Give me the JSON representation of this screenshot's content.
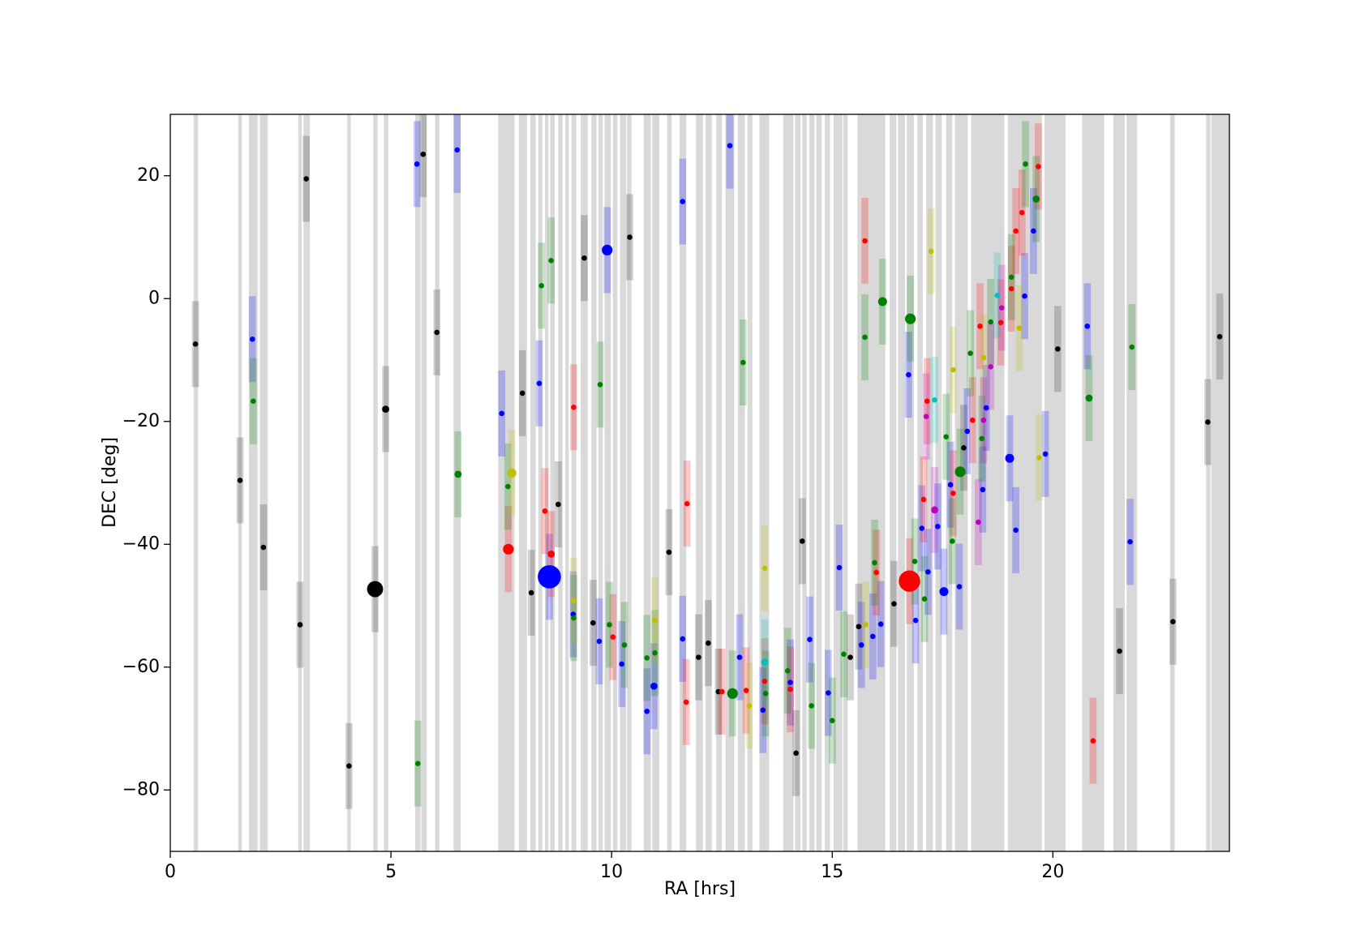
{
  "chart_data": {
    "type": "scatter",
    "x_label": "RA [hrs]",
    "y_label": "DEC [deg]",
    "xlim": [
      0,
      24
    ],
    "ylim": [
      -90,
      30
    ],
    "xticks": [
      0,
      5,
      10,
      15,
      20
    ],
    "yticks": [
      {
        "value": -80,
        "label": "−80"
      },
      {
        "value": -60,
        "label": "−60"
      },
      {
        "value": -40,
        "label": "−40"
      },
      {
        "value": -20,
        "label": "−20"
      },
      0,
      20
    ],
    "band_color": "#d9d9d9",
    "bands": [
      [
        0.53,
        0.63
      ],
      [
        1.54,
        1.62
      ],
      [
        1.78,
        1.98
      ],
      [
        2.03,
        2.21
      ],
      [
        2.9,
        2.98
      ],
      [
        3.02,
        3.16
      ],
      [
        4.01,
        4.09
      ],
      [
        4.6,
        4.7
      ],
      [
        4.84,
        4.94
      ],
      [
        5.55,
        5.67
      ],
      [
        5.69,
        5.81
      ],
      [
        6.0,
        6.1
      ],
      [
        6.42,
        6.58
      ],
      [
        7.43,
        7.8
      ],
      [
        7.9,
        8.08
      ],
      [
        8.16,
        8.28
      ],
      [
        8.34,
        8.43
      ],
      [
        8.49,
        8.57
      ],
      [
        8.61,
        8.71
      ],
      [
        8.79,
        8.89
      ],
      [
        8.95,
        9.03
      ],
      [
        9.09,
        9.2
      ],
      [
        9.3,
        9.46
      ],
      [
        9.54,
        9.66
      ],
      [
        9.7,
        9.8
      ],
      [
        9.84,
        9.98
      ],
      [
        10.03,
        10.13
      ],
      [
        10.19,
        10.33
      ],
      [
        10.35,
        10.45
      ],
      [
        10.73,
        10.89
      ],
      [
        10.92,
        11.08
      ],
      [
        11.26,
        11.36
      ],
      [
        11.54,
        11.69
      ],
      [
        11.91,
        12.07
      ],
      [
        12.13,
        12.27
      ],
      [
        12.37,
        12.5
      ],
      [
        12.58,
        12.78
      ],
      [
        12.86,
        13.02
      ],
      [
        13.08,
        13.19
      ],
      [
        13.35,
        13.57
      ],
      [
        13.89,
        14.12
      ],
      [
        14.16,
        14.28
      ],
      [
        14.32,
        14.42
      ],
      [
        14.48,
        14.6
      ],
      [
        14.64,
        14.76
      ],
      [
        14.83,
        14.95
      ],
      [
        15.03,
        15.23
      ],
      [
        15.25,
        15.35
      ],
      [
        15.57,
        16.2
      ],
      [
        16.3,
        16.45
      ],
      [
        16.49,
        16.65
      ],
      [
        16.69,
        16.85
      ],
      [
        16.93,
        17.05
      ],
      [
        17.13,
        17.28
      ],
      [
        17.34,
        17.48
      ],
      [
        17.58,
        17.72
      ],
      [
        17.78,
        18.07
      ],
      [
        18.15,
        18.9
      ],
      [
        18.98,
        19.75
      ],
      [
        19.81,
        20.29
      ],
      [
        20.66,
        21.16
      ],
      [
        21.37,
        21.63
      ],
      [
        21.67,
        21.91
      ],
      [
        22.66,
        22.76
      ],
      [
        23.47,
        23.57
      ],
      [
        23.59,
        24.0
      ]
    ],
    "series": [
      {
        "color": "#000000",
        "error": 7,
        "x": [
          0.57,
          1.58,
          2.11,
          2.94,
          3.08,
          4.05,
          4.64,
          4.88,
          5.73,
          6.04,
          7.98,
          8.18,
          8.79,
          9.38,
          9.58,
          10.41,
          11.3,
          11.97,
          12.19,
          12.42,
          14.18,
          14.32,
          15.41,
          15.6,
          16.4,
          17.98,
          20.11,
          21.51,
          22.72,
          23.51,
          23.78
        ],
        "values": [
          -7.4,
          -29.6,
          -40.5,
          -53.1,
          19.5,
          -76.1,
          -47.3,
          -18.0,
          23.5,
          -5.5,
          -15.4,
          -47.9,
          -33.5,
          6.6,
          -52.8,
          10.0,
          -41.3,
          -58.4,
          -56.1,
          -64.0,
          -74.0,
          -39.5,
          -58.4,
          -53.4,
          -49.7,
          -24.3,
          -8.2,
          -57.4,
          -52.6,
          -20.1,
          -6.2
        ],
        "sizes": [
          3,
          3,
          3,
          3,
          3,
          3,
          9,
          4,
          3,
          3,
          3,
          3,
          3,
          3,
          3,
          3,
          3,
          3,
          3,
          3,
          3,
          3,
          3,
          3,
          3,
          3,
          3,
          3,
          3,
          3,
          3
        ]
      },
      {
        "color": "#0000ff",
        "error": 7,
        "x": [
          1.86,
          5.59,
          6.5,
          7.51,
          8.36,
          8.59,
          9.13,
          9.72,
          9.9,
          10.23,
          10.8,
          10.96,
          11.61,
          11.61,
          12.68,
          12.9,
          13.43,
          14.05,
          14.49,
          14.91,
          15.16,
          15.66,
          15.92,
          16.1,
          16.73,
          16.89,
          17.03,
          17.17,
          17.39,
          17.53,
          17.68,
          17.88,
          18.06,
          18.41,
          18.49,
          19.02,
          19.16,
          19.36,
          19.56,
          19.83,
          20.78,
          21.75
        ],
        "values": [
          -6.6,
          21.9,
          24.2,
          -18.7,
          -13.8,
          -45.3,
          -51.4,
          -55.8,
          7.9,
          -59.5,
          -67.2,
          -63.1,
          15.8,
          -55.4,
          24.9,
          -58.4,
          -67.0,
          -62.5,
          -55.5,
          -64.2,
          -43.8,
          -56.4,
          -55.0,
          -53.0,
          -12.4,
          -52.4,
          -37.4,
          -44.5,
          -37.1,
          -47.7,
          -30.3,
          -46.9,
          -21.6,
          -31.1,
          -17.8,
          -26.0,
          -37.7,
          0.4,
          11.0,
          -25.3,
          -4.5,
          -39.6
        ],
        "sizes": [
          3,
          3,
          3,
          3,
          3,
          13,
          3,
          3,
          6,
          3,
          3,
          4,
          3,
          3,
          3,
          3,
          3,
          3,
          3,
          3,
          3,
          3,
          3,
          3,
          3,
          3,
          3,
          3,
          3,
          5,
          3,
          3,
          3,
          3,
          3,
          5,
          3,
          3,
          3,
          3,
          3,
          3
        ]
      },
      {
        "color": "#ff0000",
        "error": 7,
        "x": [
          7.66,
          8.49,
          8.63,
          9.14,
          10.03,
          11.69,
          11.71,
          12.5,
          13.05,
          13.47,
          14.05,
          15.74,
          16.0,
          16.75,
          17.07,
          17.15,
          17.74,
          18.18,
          18.35,
          18.82,
          19.06,
          19.16,
          19.3,
          19.67,
          20.91
        ],
        "values": [
          -40.8,
          -34.6,
          -41.6,
          -17.7,
          -55.1,
          -65.7,
          -33.4,
          -64.0,
          -63.8,
          -62.3,
          -63.6,
          9.4,
          -44.6,
          -46.0,
          -32.7,
          -16.7,
          -31.7,
          -19.8,
          -4.5,
          -3.9,
          1.6,
          11.0,
          14.0,
          21.5,
          -72.0
        ],
        "sizes": [
          6,
          3,
          4,
          3,
          3,
          3,
          3,
          3,
          3,
          3,
          3,
          3,
          3,
          12,
          3,
          3,
          3,
          3,
          3,
          3,
          3,
          3,
          3,
          3,
          3
        ]
      },
      {
        "color": "#008000",
        "error": 7,
        "x": [
          1.88,
          5.61,
          6.52,
          7.65,
          8.41,
          8.63,
          9.14,
          9.74,
          9.95,
          10.29,
          10.8,
          10.98,
          12.74,
          12.98,
          13.49,
          13.99,
          14.53,
          15.0,
          15.26,
          15.74,
          15.96,
          16.14,
          16.77,
          16.87,
          17.09,
          17.58,
          17.72,
          17.9,
          18.13,
          18.39,
          18.59,
          19.06,
          19.38,
          19.62,
          20.82,
          21.79
        ],
        "values": [
          -16.7,
          -75.7,
          -28.6,
          -30.6,
          2.1,
          6.2,
          -52.0,
          -14.0,
          -53.1,
          -56.4,
          -58.5,
          -57.7,
          -64.3,
          -10.4,
          -64.3,
          -60.6,
          -66.3,
          -68.7,
          -57.9,
          -6.3,
          -43.0,
          -0.5,
          -3.3,
          -42.8,
          -48.9,
          -22.5,
          -39.5,
          -28.2,
          -8.9,
          -22.8,
          -3.8,
          3.5,
          21.9,
          16.2,
          -16.2,
          -7.9
        ],
        "sizes": [
          3,
          3,
          4,
          3,
          3,
          3,
          3,
          3,
          3,
          3,
          3,
          3,
          6,
          3,
          3,
          3,
          3,
          3,
          3,
          3,
          3,
          5,
          6,
          3,
          3,
          3,
          3,
          6,
          3,
          3,
          3,
          3,
          3,
          4,
          4,
          3
        ]
      },
      {
        "color": "#bfbf00",
        "error": 7,
        "x": [
          7.74,
          9.14,
          10.98,
          13.12,
          13.47,
          15.76,
          17.24,
          17.74,
          18.43,
          19.24,
          19.69
        ],
        "values": [
          -28.4,
          -49.2,
          -52.4,
          -66.3,
          -43.9,
          -53.1,
          7.7,
          -11.6,
          -9.6,
          -4.8,
          -25.9
        ],
        "sizes": [
          5,
          3,
          3,
          3,
          3,
          3,
          3,
          3,
          3,
          3,
          3
        ]
      },
      {
        "color": "#00bfbf",
        "error": 7,
        "x": [
          13.47,
          17.32,
          18.74
        ],
        "values": [
          -59.2,
          -16.5,
          0.5
        ],
        "sizes": [
          4,
          3,
          3
        ]
      },
      {
        "color": "#bf00bf",
        "error": 7,
        "x": [
          17.13,
          17.32,
          18.31,
          18.43,
          18.59,
          18.84
        ],
        "values": [
          -19.2,
          -34.4,
          -36.4,
          -19.8,
          -11.1,
          -1.5
        ],
        "sizes": [
          3,
          4,
          3,
          3,
          3,
          3
        ]
      }
    ]
  }
}
